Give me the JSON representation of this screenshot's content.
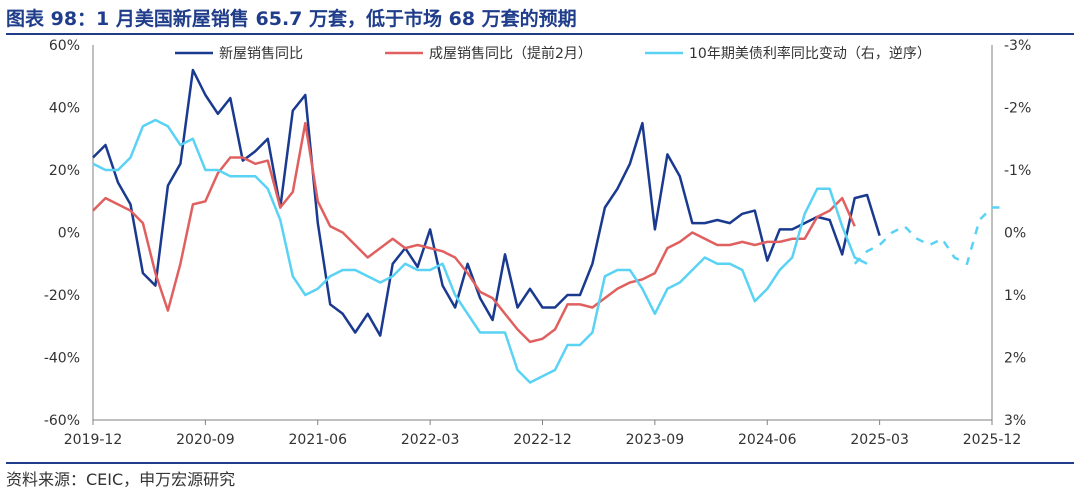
{
  "title": "图表 98：1 月美国新屋销售 65.7 万套，低于市场 68 万套的预期",
  "source": "资料来源：CEIC，申万宏源研究",
  "chart_data": {
    "type": "line",
    "x_tick_labels": [
      "2019-12",
      "2020-09",
      "2021-06",
      "2022-03",
      "2022-12",
      "2023-09",
      "2024-06",
      "2025-03",
      "2025-12"
    ],
    "y_left": {
      "ylim": [
        -60,
        60
      ],
      "ticks": [
        "60%",
        "40%",
        "20%",
        "0%",
        "-20%",
        "-40%",
        "-60%"
      ]
    },
    "y_right": {
      "ylim": [
        -3,
        3
      ],
      "inverted": true,
      "ticks": [
        "-3%",
        "-2%",
        "-1%",
        "0%",
        "1%",
        "2%",
        "3%"
      ]
    },
    "months_per_tick": 9,
    "series": [
      {
        "name": "新屋销售同比",
        "color": "#1a3a8f",
        "axis": "left",
        "style": "solid",
        "values": [
          24,
          28,
          16,
          9,
          -13,
          -17,
          15,
          22,
          52,
          44,
          38,
          43,
          23,
          26,
          30,
          8,
          39,
          44,
          3,
          -23,
          -26,
          -32,
          -26,
          -33,
          -10,
          -5,
          -11,
          1,
          -17,
          -24,
          -10,
          -21,
          -28,
          -7,
          -24,
          -18,
          -24,
          -24,
          -20,
          -20,
          -10,
          8,
          14,
          22,
          35,
          1,
          25,
          18,
          3,
          3,
          4,
          3,
          6,
          7,
          -9,
          1,
          1,
          3,
          5,
          4,
          -7,
          11,
          12,
          -1
        ]
      },
      {
        "name": "成屋销售同比（提前2月）",
        "color": "#e06060",
        "axis": "left",
        "style": "solid",
        "values": [
          7,
          11,
          9,
          7,
          3,
          -13,
          -25,
          -10,
          9,
          10,
          19,
          24,
          24,
          22,
          23,
          8,
          13,
          35,
          10,
          2,
          0,
          -4,
          -8,
          -5,
          -2,
          -5,
          -4,
          -5,
          -6,
          -8,
          -13,
          -19,
          -21,
          -26,
          -31,
          -35,
          -34,
          -31,
          -23,
          -23,
          -24,
          -21,
          -18,
          -16,
          -15,
          -13,
          -5,
          -3,
          0,
          -2,
          -4,
          -4,
          -3,
          -4,
          -3,
          -3,
          -2,
          -2,
          5,
          7,
          11,
          2
        ]
      },
      {
        "name": "10年期美债利率同比变动（右，逆序）",
        "color": "#5ad2f4",
        "axis": "right",
        "style": "solid",
        "values": [
          -1.1,
          -1.0,
          -1.0,
          -1.2,
          -1.7,
          -1.8,
          -1.7,
          -1.4,
          -1.5,
          -1.0,
          -1.0,
          -0.9,
          -0.9,
          -0.9,
          -0.7,
          -0.2,
          0.7,
          1.0,
          0.9,
          0.7,
          0.6,
          0.6,
          0.7,
          0.8,
          0.7,
          0.5,
          0.6,
          0.6,
          0.5,
          1.0,
          1.3,
          1.6,
          1.6,
          1.6,
          2.2,
          2.4,
          2.3,
          2.2,
          1.8,
          1.8,
          1.6,
          0.7,
          0.6,
          0.6,
          0.9,
          1.3,
          0.9,
          0.8,
          0.6,
          0.4,
          0.5,
          0.5,
          0.6,
          1.1,
          0.9,
          0.6,
          0.4,
          -0.3,
          -0.7,
          -0.7,
          -0.1,
          0.4,
          0.5
        ]
      },
      {
        "name": "",
        "color": "#5ad2f4",
        "axis": "right",
        "style": "dashed",
        "x_offset": 61,
        "values": [
          0.5,
          0.3,
          0.2,
          0.0,
          -0.1,
          0.1,
          0.2,
          0.1,
          0.4,
          0.5,
          -0.2,
          -0.4,
          -0.4
        ]
      }
    ]
  }
}
